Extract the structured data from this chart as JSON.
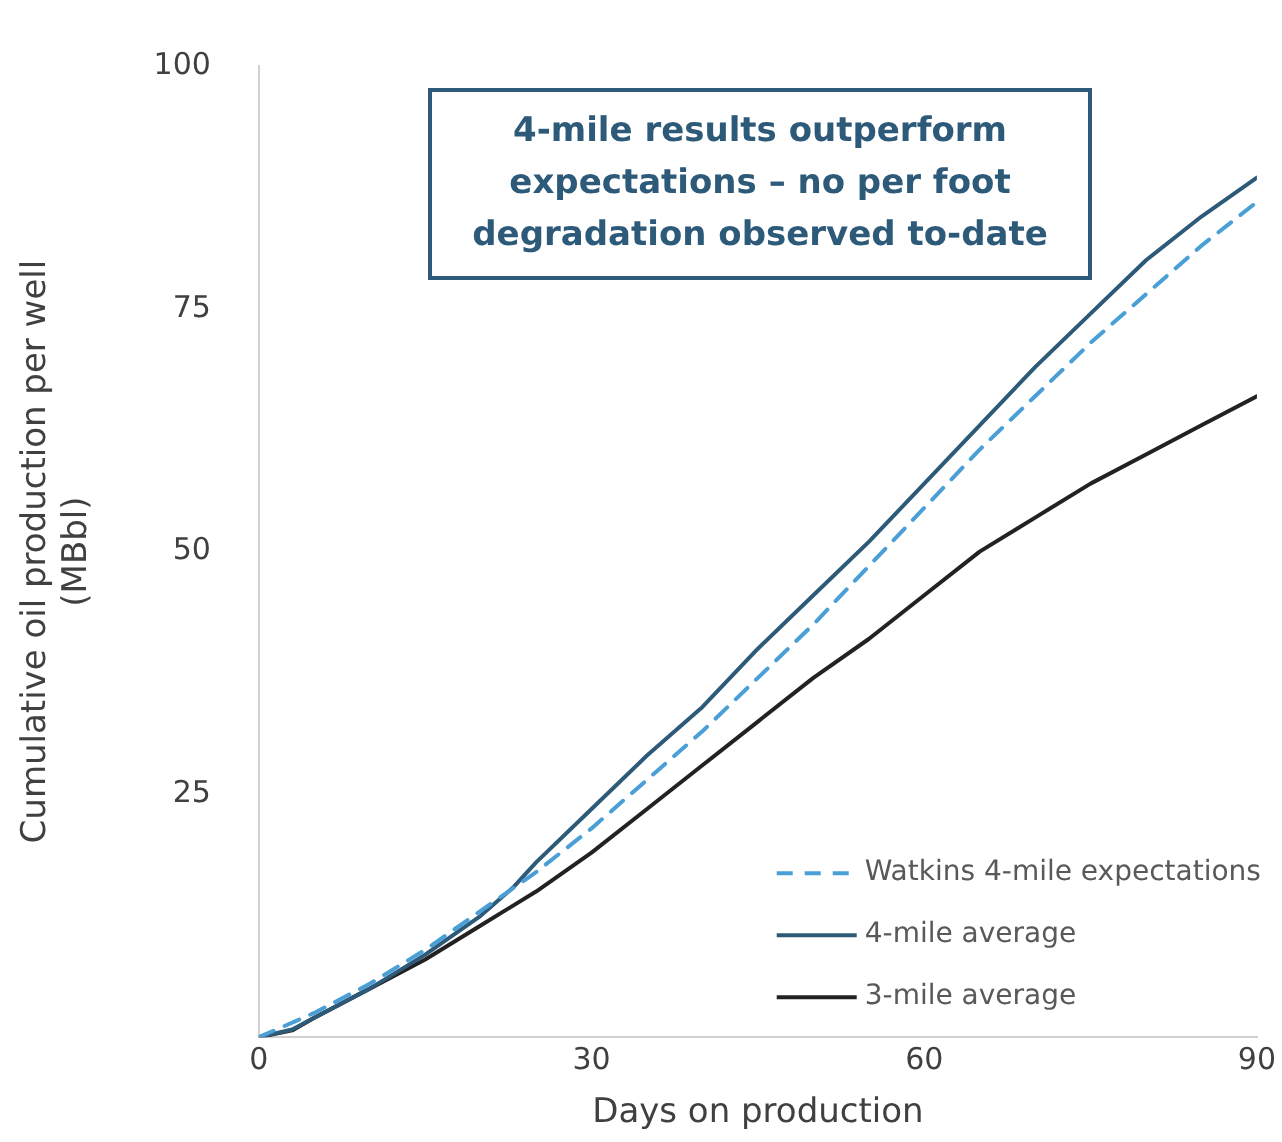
{
  "chart_data": {
    "type": "line",
    "xlabel": "Days on production",
    "ylabel": "Cumulative oil production per well\n(MBbl)",
    "annotations": [
      "4-mile results outperform expectations – no per foot degradation observed to-date"
    ],
    "xlim": [
      0,
      90
    ],
    "xticks": [
      0,
      30,
      60,
      90
    ],
    "ylim": [
      0,
      100
    ],
    "yticks": [
      {
        "value": 0,
        "label": null
      },
      25,
      50,
      75,
      100
    ],
    "grid": false,
    "legend": "bottom right",
    "marker": "none",
    "series": [
      {
        "name": "Watkins 4-mile expectations",
        "color": "#4a9fd6",
        "line_style": "dashed",
        "x": [
          0,
          5,
          10,
          15,
          20,
          25,
          30,
          35,
          40,
          45,
          50,
          55,
          60,
          65,
          70,
          75,
          80,
          85,
          90
        ],
        "values": [
          0,
          2.5,
          5.5,
          9,
          13,
          17,
          21.5,
          26.5,
          31.5,
          37,
          42.5,
          48.5,
          54.5,
          60.5,
          66,
          71.5,
          76.5,
          81.5,
          86
        ]
      },
      {
        "name": "4-mile average",
        "color": "#2e5a7a",
        "line_style": "solid",
        "x": [
          0,
          3,
          5,
          10,
          15,
          20,
          23,
          25,
          30,
          35,
          40,
          45,
          50,
          55,
          60,
          65,
          70,
          75,
          80,
          85,
          90
        ],
        "values": [
          0,
          0.8,
          2,
          5,
          8.5,
          12.5,
          15.5,
          18,
          23.5,
          29,
          34,
          40,
          45.5,
          51,
          57,
          63,
          69,
          74.5,
          80,
          84.5,
          88.5
        ]
      },
      {
        "name": "3-mile average",
        "color": "#222222",
        "line_style": "solid",
        "x": [
          0,
          3,
          5,
          10,
          15,
          20,
          25,
          30,
          35,
          40,
          45,
          50,
          55,
          60,
          65,
          70,
          75,
          80,
          85,
          90
        ],
        "values": [
          0,
          0.7,
          2,
          5,
          8,
          11.5,
          15,
          19,
          23.5,
          28,
          32.5,
          37,
          41,
          45.5,
          50,
          53.5,
          57,
          60,
          63,
          66
        ]
      }
    ]
  }
}
